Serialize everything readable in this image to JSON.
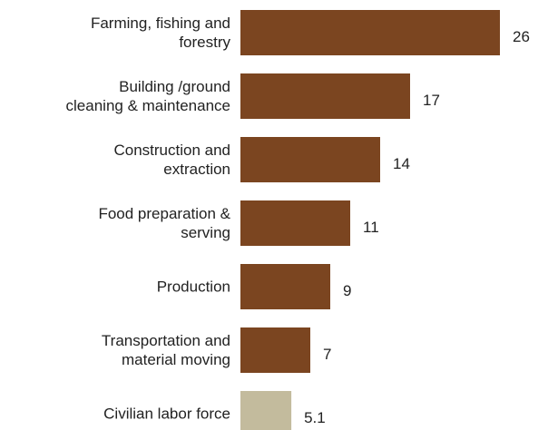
{
  "chart_data": {
    "type": "bar",
    "orientation": "horizontal",
    "categories": [
      "Farming, fishing and\nforestry",
      "Building /ground\ncleaning & maintenance",
      "Construction and\nextraction",
      "Food preparation &\nserving",
      "Production",
      "Transportation and\nmaterial moving",
      "Civilian labor force"
    ],
    "values": [
      26,
      17,
      14,
      11,
      9,
      7,
      5.1
    ],
    "colors": [
      "#7b4520",
      "#7b4520",
      "#7b4520",
      "#7b4520",
      "#7b4520",
      "#7b4520",
      "#c3bb9d"
    ]
  }
}
